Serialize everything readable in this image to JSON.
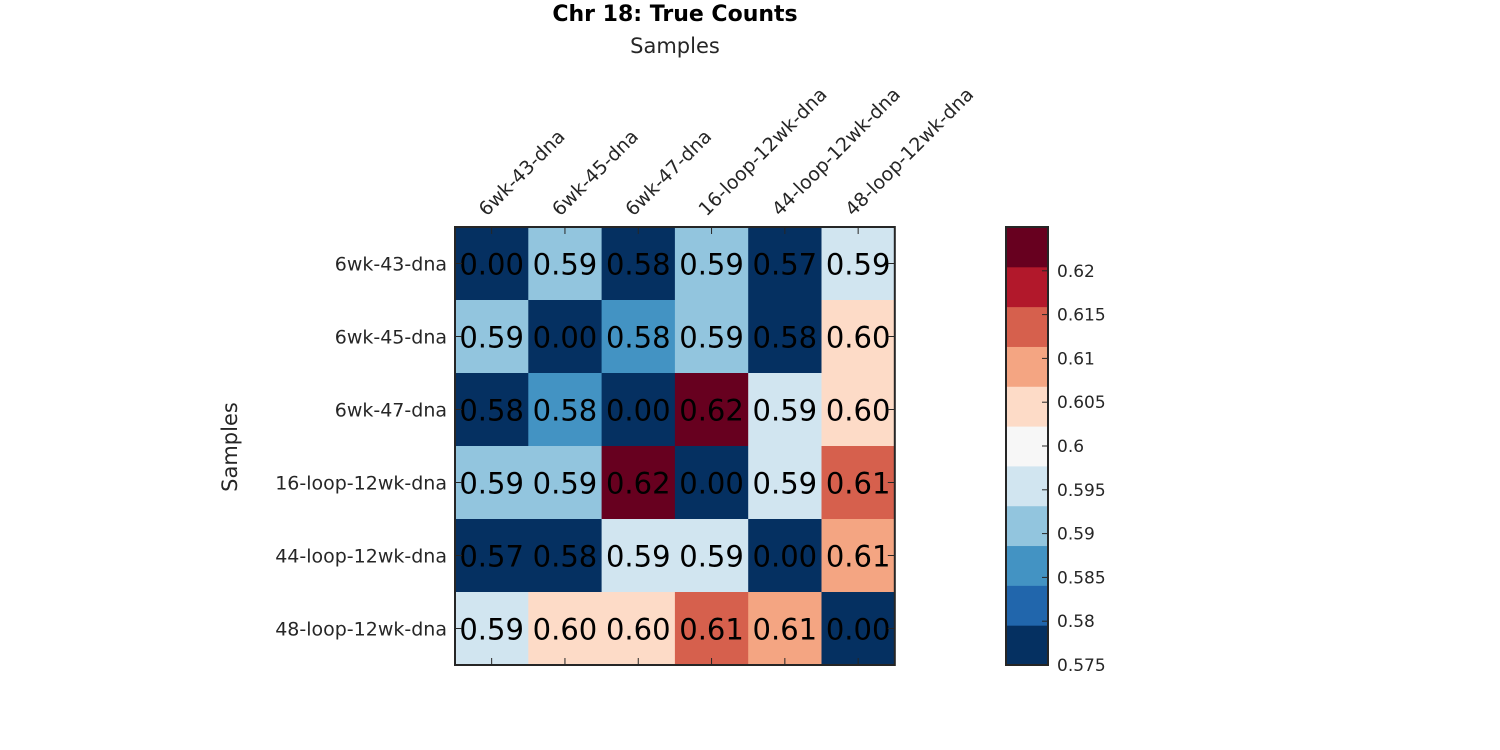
{
  "chart_data": {
    "type": "heatmap",
    "title": "Chr 18: True Counts",
    "xlabel": "Samples",
    "ylabel": "Samples",
    "x_categories": [
      "6wk-43-dna",
      "6wk-45-dna",
      "6wk-47-dna",
      "16-loop-12wk-dna",
      "44-loop-12wk-dna",
      "48-loop-12wk-dna"
    ],
    "y_categories": [
      "6wk-43-dna",
      "6wk-45-dna",
      "6wk-47-dna",
      "16-loop-12wk-dna",
      "44-loop-12wk-dna",
      "48-loop-12wk-dna"
    ],
    "values": [
      [
        0.0,
        0.59,
        0.58,
        0.59,
        0.57,
        0.59
      ],
      [
        0.59,
        0.0,
        0.58,
        0.59,
        0.58,
        0.6
      ],
      [
        0.58,
        0.58,
        0.0,
        0.62,
        0.59,
        0.6
      ],
      [
        0.59,
        0.59,
        0.62,
        0.0,
        0.59,
        0.61
      ],
      [
        0.57,
        0.58,
        0.59,
        0.59,
        0.0,
        0.61
      ],
      [
        0.59,
        0.6,
        0.6,
        0.61,
        0.61,
        0.0
      ]
    ],
    "value_labels": [
      [
        "0.00",
        "0.59",
        "0.58",
        "0.59",
        "0.57",
        "0.59"
      ],
      [
        "0.59",
        "0.00",
        "0.58",
        "0.59",
        "0.58",
        "0.60"
      ],
      [
        "0.58",
        "0.58",
        "0.00",
        "0.62",
        "0.59",
        "0.60"
      ],
      [
        "0.59",
        "0.59",
        "0.62",
        "0.00",
        "0.59",
        "0.61"
      ],
      [
        "0.57",
        "0.58",
        "0.59",
        "0.59",
        "0.00",
        "0.61"
      ],
      [
        "0.59",
        "0.60",
        "0.60",
        "0.61",
        "0.61",
        "0.00"
      ]
    ],
    "cell_colors": [
      [
        "#053061",
        "#92c5de",
        "#053061",
        "#92c5de",
        "#053061",
        "#d1e5f0"
      ],
      [
        "#92c5de",
        "#053061",
        "#4393c3",
        "#92c5de",
        "#053061",
        "#fddbc7"
      ],
      [
        "#053061",
        "#4393c3",
        "#053061",
        "#67001f",
        "#d1e5f0",
        "#fddbc7"
      ],
      [
        "#92c5de",
        "#92c5de",
        "#67001f",
        "#053061",
        "#d1e5f0",
        "#d6604d"
      ],
      [
        "#053061",
        "#053061",
        "#d1e5f0",
        "#d1e5f0",
        "#053061",
        "#f4a582"
      ],
      [
        "#d1e5f0",
        "#fddbc7",
        "#fddbc7",
        "#d6604d",
        "#f4a582",
        "#053061"
      ]
    ],
    "colorbar": {
      "range": [
        0.575,
        0.625
      ],
      "colors": [
        "#053061",
        "#2166ac",
        "#4393c3",
        "#92c5de",
        "#d1e5f0",
        "#f7f7f7",
        "#fddbc7",
        "#f4a582",
        "#d6604d",
        "#b2182b",
        "#67001f"
      ],
      "ticks": [
        "0.575",
        "0.58",
        "0.585",
        "0.59",
        "0.595",
        "0.6",
        "0.605",
        "0.61",
        "0.615",
        "0.62"
      ]
    },
    "x_ticks_position": "top",
    "grid": false
  }
}
